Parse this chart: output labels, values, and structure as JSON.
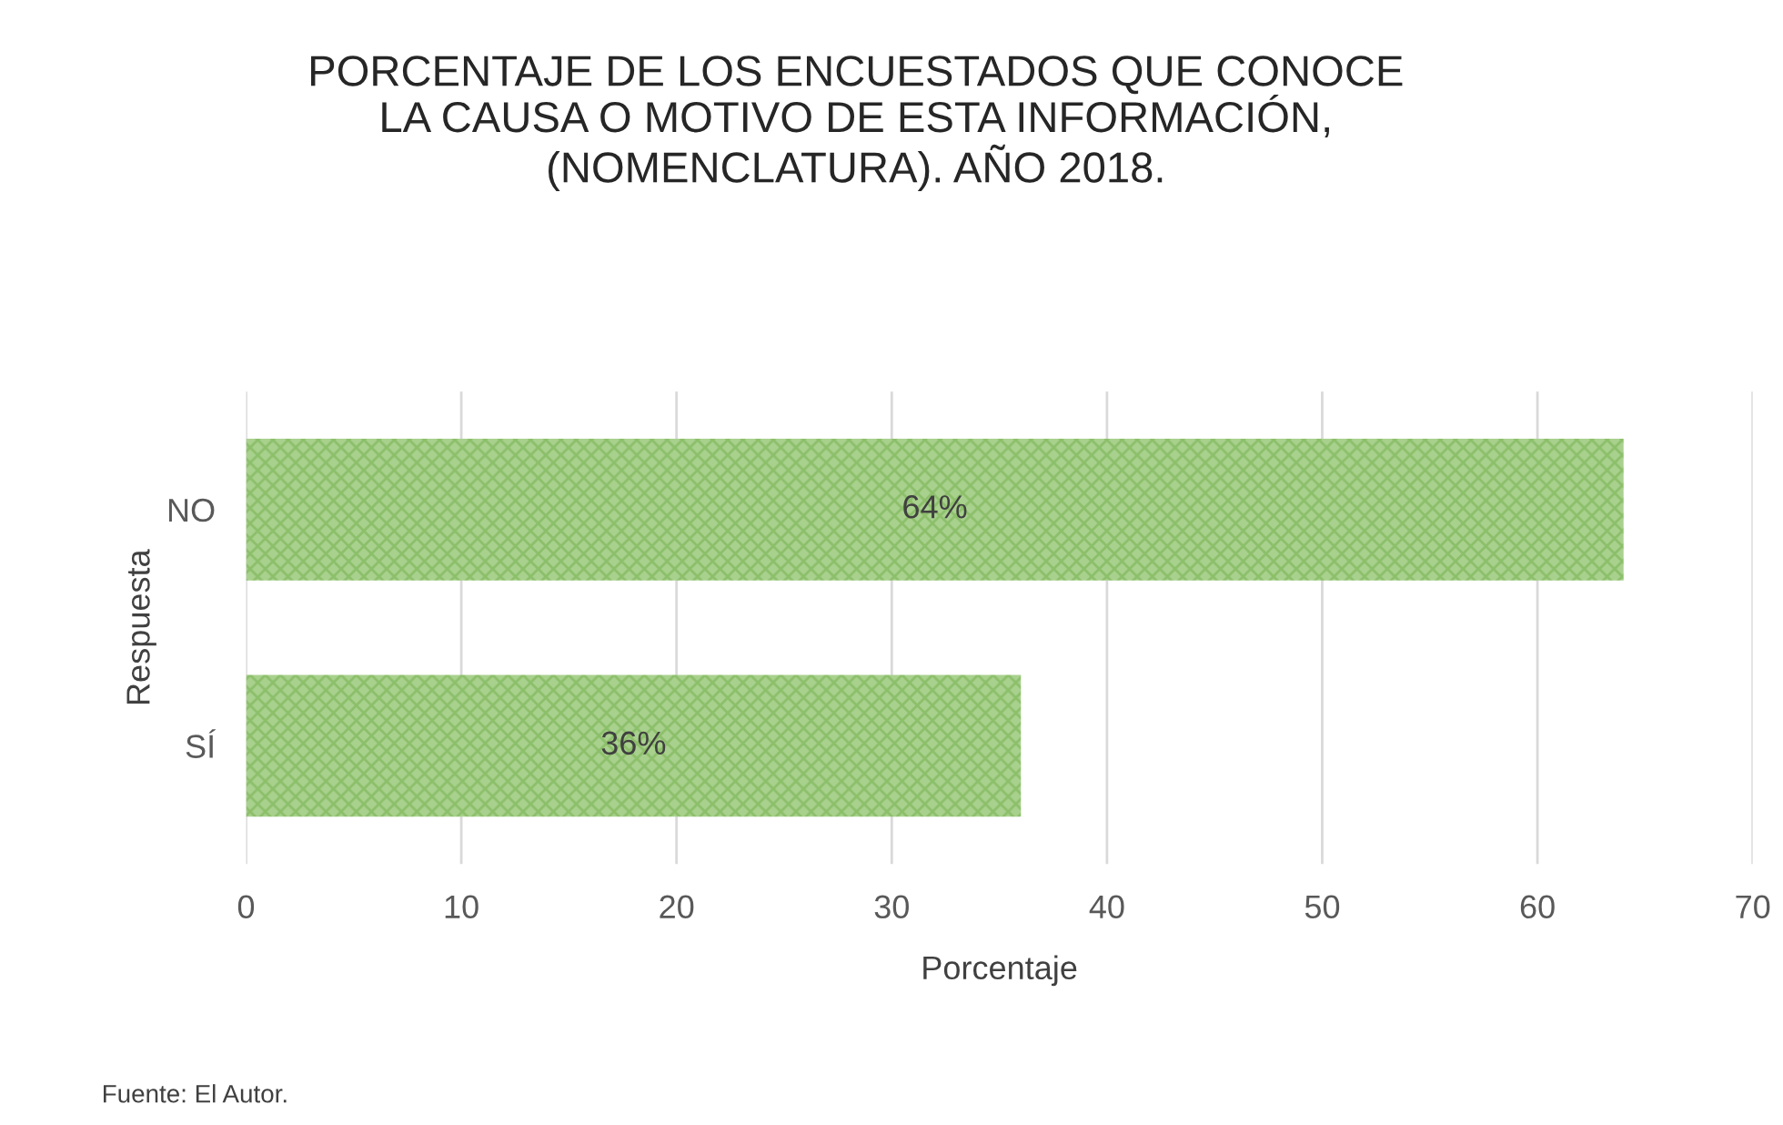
{
  "chart_data": {
    "type": "bar",
    "orientation": "horizontal",
    "title": "PORCENTAJE DE LOS ENCUESTADOS QUE CONOCE\nLA CAUSA O MOTIVO DE ESTA INFORMACIÓN,\n(NOMENCLATURA). AÑO 2018.",
    "xlabel": "Porcentaje",
    "ylabel": "Respuesta",
    "categories": [
      "NO",
      "SÍ"
    ],
    "values": [
      64,
      36
    ],
    "value_labels": [
      "64%",
      "36%"
    ],
    "color": "#a9d18e",
    "xlim": [
      0,
      70
    ],
    "xticks": [
      0,
      10,
      20,
      30,
      40,
      50,
      60,
      70
    ],
    "grid": "x",
    "legend": false,
    "annotations": [
      "Fuente: El Autor."
    ]
  }
}
